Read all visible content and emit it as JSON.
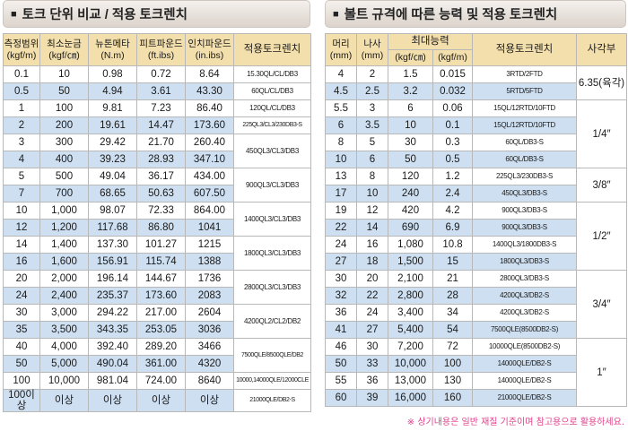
{
  "left_title": "토크 단위 비교 / 적용 토크렌치",
  "right_title": "볼트 규격에 따른 능력 및 적용 토크렌치",
  "bullet": "■",
  "left_headers": {
    "c1a": "측정범위",
    "c1b": "(kgf/m)",
    "c2a": "최소눈금",
    "c2b": "(kgf/㎝)",
    "c3a": "뉴톤메타",
    "c3b": "(N.m)",
    "c4a": "피트파운드",
    "c4b": "(ft.ibs)",
    "c5a": "인치파운드",
    "c5b": "(in.ibs)",
    "c6": "적용토크렌치"
  },
  "left_rows": [
    [
      "0.1",
      "10",
      "0.98",
      "0.72",
      "8.64"
    ],
    [
      "0.5",
      "50",
      "4.94",
      "3.61",
      "43.30"
    ],
    [
      "1",
      "100",
      "9.81",
      "7.23",
      "86.40"
    ],
    [
      "2",
      "200",
      "19.61",
      "14.47",
      "173.60"
    ],
    [
      "3",
      "300",
      "29.42",
      "21.70",
      "260.40"
    ],
    [
      "4",
      "400",
      "39.23",
      "28.93",
      "347.10"
    ],
    [
      "5",
      "500",
      "49.04",
      "36.17",
      "434.00"
    ],
    [
      "7",
      "700",
      "68.65",
      "50.63",
      "607.50"
    ],
    [
      "10",
      "1,000",
      "98.07",
      "72.33",
      "864.00"
    ],
    [
      "12",
      "1,200",
      "117.68",
      "86.80",
      "1041"
    ],
    [
      "14",
      "1,400",
      "137.30",
      "101.27",
      "1215"
    ],
    [
      "16",
      "1,600",
      "156.91",
      "115.74",
      "1388"
    ],
    [
      "20",
      "2,000",
      "196.14",
      "144.67",
      "1736"
    ],
    [
      "24",
      "2,400",
      "235.37",
      "173.60",
      "2083"
    ],
    [
      "30",
      "3,000",
      "294.22",
      "217.00",
      "2604"
    ],
    [
      "35",
      "3,500",
      "343.35",
      "253.05",
      "3036"
    ],
    [
      "40",
      "4,000",
      "392.40",
      "289.20",
      "3466"
    ],
    [
      "50",
      "5,000",
      "490.04",
      "361.00",
      "4320"
    ],
    [
      "100",
      "10,000",
      "981.04",
      "724.00",
      "8640"
    ],
    [
      "100이상",
      "이상",
      "이상",
      "이상",
      "이상"
    ]
  ],
  "left_wrenches": [
    "15.30QL/CL/DB3",
    "60QL/CL/DB3",
    "120QL/CL/DB3",
    "225QL3/CL3/230DB3-S",
    "450QL3/CL3/DB3",
    "900QL3/CL3/DB3",
    "1400QL3/CL3/DB3",
    "1800QL3/CL3/DB3",
    "2800QL3/CL3/DB3",
    "4200QL2/CL2/DB2",
    "7500QLE/8500QLE/DB2",
    "10000,14000QLE/12000CLE",
    "21000QLE/DB2-S"
  ],
  "right_headers": {
    "c1a": "머리",
    "c1b": "(mm)",
    "c2a": "나사",
    "c2b": "(mm)",
    "c3": "최대능력",
    "c3a": "(kgf/㎝)",
    "c3b": "(kgf/m)",
    "c4": "적용토크렌치",
    "c5": "사각부"
  },
  "right_rows": [
    [
      "4",
      "2",
      "1.5",
      "0.015",
      "3RTD/2FTD"
    ],
    [
      "4.5",
      "2.5",
      "3.2",
      "0.032",
      "5RTD/5FTD"
    ],
    [
      "5.5",
      "3",
      "6",
      "0.06",
      "15QL/12RTD/10FTD"
    ],
    [
      "6",
      "3.5",
      "10",
      "0.1",
      "15QL/12RTD/10FTD"
    ],
    [
      "8",
      "5",
      "30",
      "0.3",
      "60QL/DB3-S"
    ],
    [
      "10",
      "6",
      "50",
      "0.5",
      "60QL/DB3-S"
    ],
    [
      "13",
      "8",
      "120",
      "1.2",
      "225QL3/230DB3-S"
    ],
    [
      "17",
      "10",
      "240",
      "2.4",
      "450QL3/DB3-S"
    ],
    [
      "19",
      "12",
      "420",
      "4.2",
      "900QL3/DB3-S"
    ],
    [
      "22",
      "14",
      "690",
      "6.9",
      "900QL3/DB3-S"
    ],
    [
      "24",
      "16",
      "1,080",
      "10.8",
      "1400QL3/1800DB3-S"
    ],
    [
      "27",
      "18",
      "1,500",
      "15",
      "1800QL3/DB3-S"
    ],
    [
      "30",
      "20",
      "2,100",
      "21",
      "2800QL3/DB3-S"
    ],
    [
      "32",
      "22",
      "2,800",
      "28",
      "4200QL3/DB2-S"
    ],
    [
      "36",
      "24",
      "3,400",
      "34",
      "4200QL3/DB2-S"
    ],
    [
      "41",
      "27",
      "5,400",
      "54",
      "7500QLE(8500DB2-S)"
    ],
    [
      "46",
      "30",
      "7,200",
      "72",
      "10000QLE(8500DB2-S)"
    ],
    [
      "50",
      "33",
      "10,000",
      "100",
      "14000QLE/DB2-S"
    ],
    [
      "55",
      "36",
      "13,000",
      "130",
      "14000QLE/DB2-S"
    ],
    [
      "60",
      "39",
      "16,000",
      "160",
      "21000QLE/DB2-S"
    ]
  ],
  "square_drives": [
    "6.35(육각)",
    "1/4″",
    "3/8″",
    "1/2″",
    "3/4″",
    "1″"
  ],
  "note": "※ 상기내용은 일반 재질 기준이며 참고용으로 활용하세요."
}
